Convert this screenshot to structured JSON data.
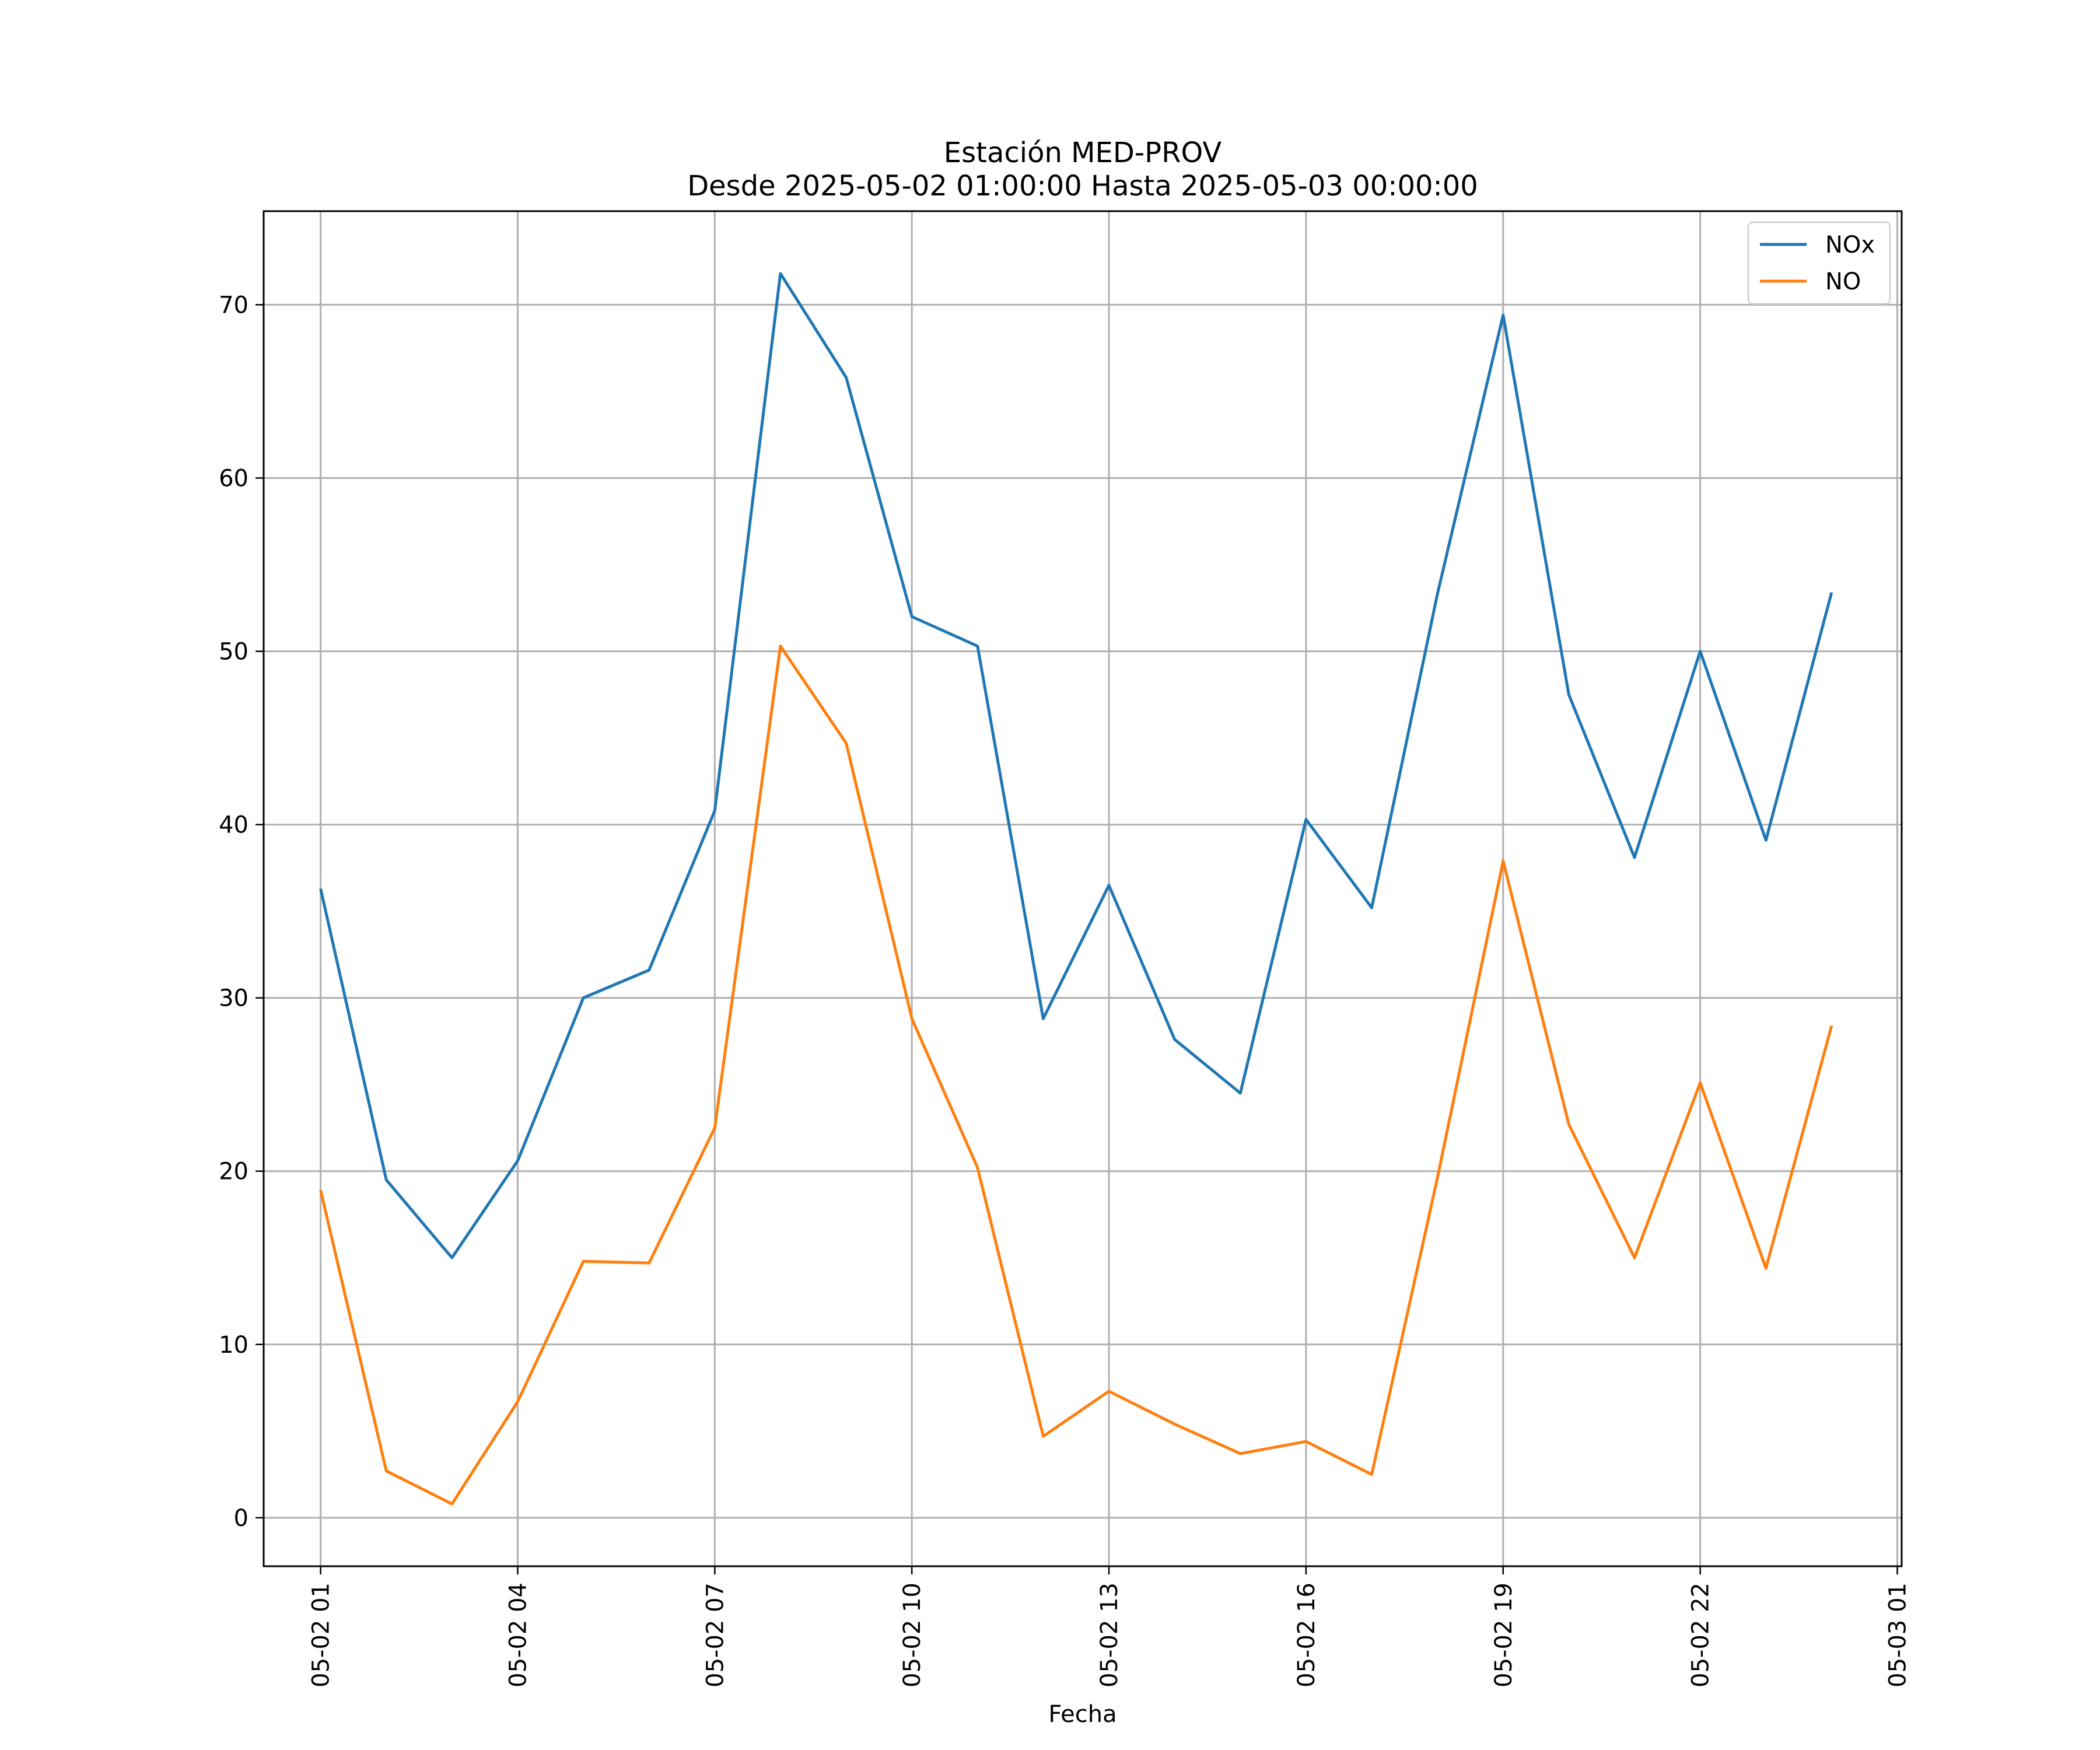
{
  "chart_data": {
    "type": "line",
    "title": "Estación MED-PROV",
    "subtitle": "Desde 2025-05-02 01:00:00 Hasta 2025-05-03 00:00:00",
    "xlabel": "Fecha",
    "ylabel": "",
    "grid": true,
    "legend_position": "top-right",
    "x": [
      "2025-05-02 01:00",
      "2025-05-02 02:00",
      "2025-05-02 03:00",
      "2025-05-02 04:00",
      "2025-05-02 05:00",
      "2025-05-02 06:00",
      "2025-05-02 07:00",
      "2025-05-02 08:00",
      "2025-05-02 09:00",
      "2025-05-02 10:00",
      "2025-05-02 11:00",
      "2025-05-02 12:00",
      "2025-05-02 13:00",
      "2025-05-02 14:00",
      "2025-05-02 15:00",
      "2025-05-02 16:00",
      "2025-05-02 17:00",
      "2025-05-02 18:00",
      "2025-05-02 19:00",
      "2025-05-02 20:00",
      "2025-05-02 21:00",
      "2025-05-02 22:00",
      "2025-05-02 23:00",
      "2025-05-03 00:00"
    ],
    "xlim": [
      "2025-05-02 00:08",
      "2025-05-03 01:04"
    ],
    "ylim": [
      -2.8,
      75.4
    ],
    "x_ticks": [
      "2025-05-02 01:00",
      "2025-05-02 04:00",
      "2025-05-02 07:00",
      "2025-05-02 10:00",
      "2025-05-02 13:00",
      "2025-05-02 16:00",
      "2025-05-02 19:00",
      "2025-05-02 22:00",
      "2025-05-03 01:00"
    ],
    "x_tick_labels": [
      "05-02 01",
      "05-02 04",
      "05-02 07",
      "05-02 10",
      "05-02 13",
      "05-02 16",
      "05-02 19",
      "05-02 22",
      "05-03 01"
    ],
    "y_ticks": [
      0,
      10,
      20,
      30,
      40,
      50,
      60,
      70
    ],
    "y_tick_labels": [
      "0",
      "10",
      "20",
      "30",
      "40",
      "50",
      "60",
      "70"
    ],
    "series": [
      {
        "name": "NOx",
        "color": "#1f77b4",
        "values": [
          36.3,
          19.5,
          15.0,
          20.6,
          30.0,
          31.6,
          40.8,
          71.8,
          65.8,
          52.0,
          50.3,
          28.8,
          36.5,
          27.6,
          24.5,
          40.3,
          35.2,
          53.3,
          69.4,
          47.5,
          38.1,
          50.0,
          39.1,
          53.4
        ]
      },
      {
        "name": "NO",
        "color": "#ff7f0e",
        "values": [
          18.9,
          2.7,
          0.8,
          6.7,
          14.8,
          14.7,
          22.5,
          50.3,
          44.7,
          28.8,
          20.2,
          4.7,
          7.3,
          5.4,
          3.7,
          4.4,
          2.5,
          19.6,
          37.9,
          22.7,
          15.0,
          25.1,
          14.4,
          28.4
        ]
      }
    ]
  }
}
